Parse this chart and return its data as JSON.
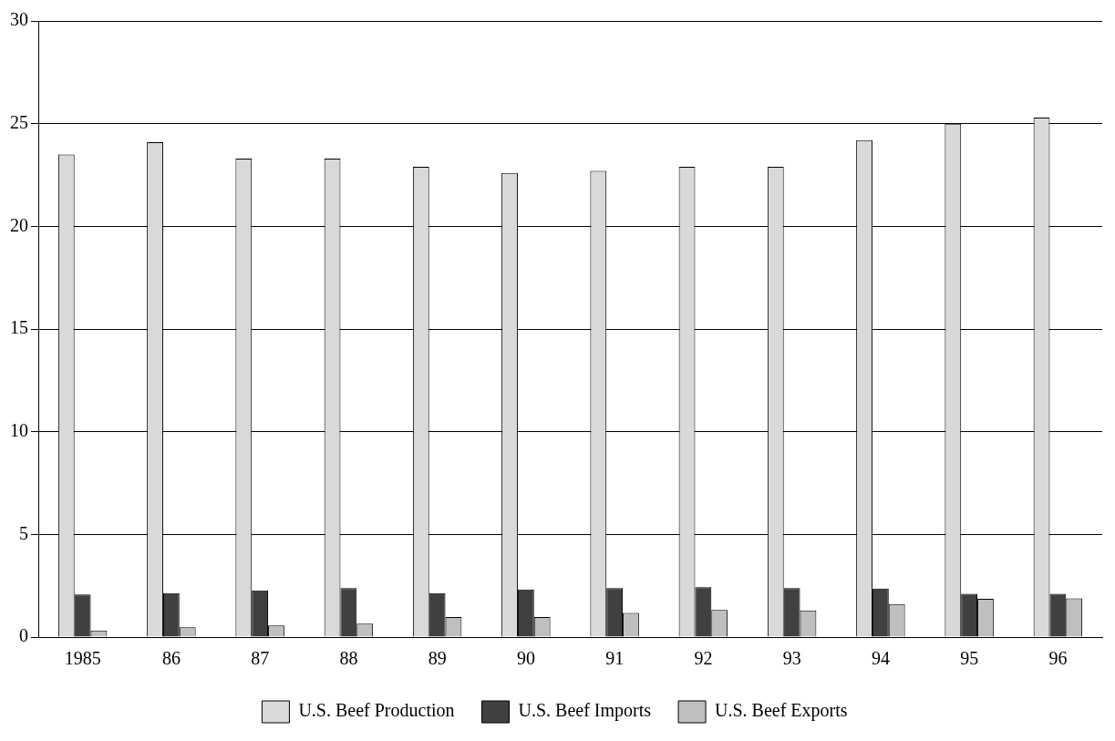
{
  "chart_data": {
    "type": "bar",
    "categories": [
      "1985",
      "86",
      "87",
      "88",
      "89",
      "90",
      "91",
      "92",
      "93",
      "94",
      "95",
      "96"
    ],
    "series": [
      {
        "name": "U.S. Beef Production",
        "color": "#d9d9d9",
        "values": [
          23.5,
          24.1,
          23.3,
          23.3,
          22.9,
          22.6,
          22.7,
          22.9,
          22.9,
          24.2,
          25.0,
          25.3
        ]
      },
      {
        "name": "U.S. Beef Imports",
        "color": "#404040",
        "values": [
          2.07,
          2.14,
          2.27,
          2.38,
          2.14,
          2.32,
          2.39,
          2.43,
          2.39,
          2.36,
          2.11,
          2.11
        ]
      },
      {
        "name": "U.S. Beef Exports",
        "color": "#bfbfbf",
        "values": [
          0.32,
          0.48,
          0.57,
          0.66,
          0.98,
          0.98,
          1.18,
          1.32,
          1.3,
          1.61,
          1.86,
          1.89
        ]
      }
    ],
    "ylim": [
      0,
      30
    ],
    "yticks": [
      0,
      5,
      10,
      15,
      20,
      25,
      30
    ],
    "grid": "y",
    "legend": "bottom"
  }
}
